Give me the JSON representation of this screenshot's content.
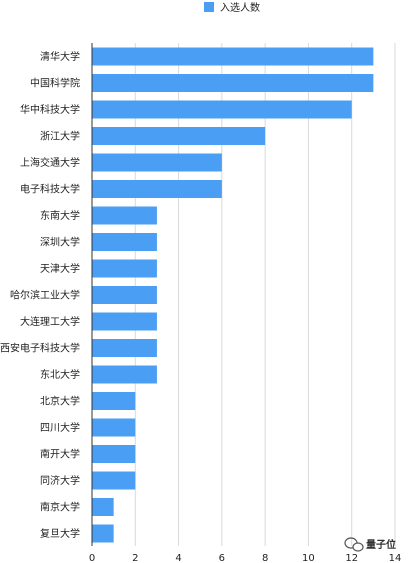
{
  "chart_data": {
    "type": "bar",
    "orientation": "horizontal",
    "categories": [
      "清华大学",
      "中国科学院",
      "华中科技大学",
      "浙江大学",
      "上海交通大学",
      "电子科技大学",
      "东南大学",
      "深圳大学",
      "天津大学",
      "哈尔滨工业大学",
      "大连理工大学",
      "西安电子科技大学",
      "东北大学",
      "北京大学",
      "四川大学",
      "南开大学",
      "同济大学",
      "南京大学",
      "复旦大学"
    ],
    "series": [
      {
        "name": "入选人数",
        "color": "#4a9ff5",
        "values": [
          13,
          13,
          12,
          8,
          6,
          6,
          3,
          3,
          3,
          3,
          3,
          3,
          3,
          2,
          2,
          2,
          2,
          1,
          1
        ]
      }
    ],
    "xlim": [
      0,
      14
    ],
    "xticks": [
      "0",
      "2",
      "4",
      "6",
      "8",
      "10",
      "12",
      "14"
    ],
    "legend_position": "top-center",
    "grid": true
  },
  "watermark": {
    "text": "量子位",
    "icon": "wechat-icon"
  }
}
